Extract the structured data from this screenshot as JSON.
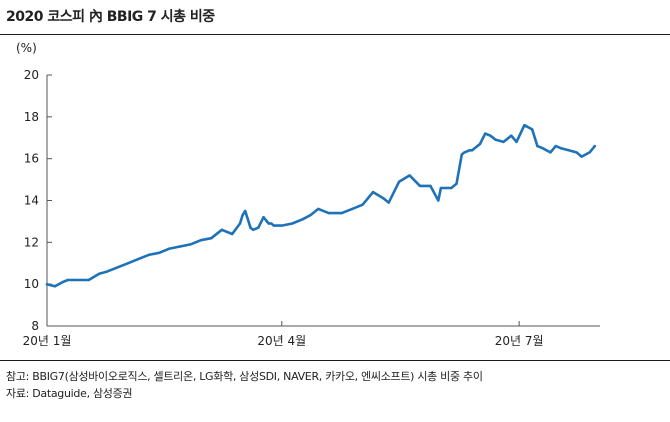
{
  "header": {
    "title": "2020 코스피 內 BBIG 7 시총 비중"
  },
  "footnotes": {
    "note": "참고: BBIG7(삼성바이오로직스, 셀트리온, LG화학, 삼성SDI, NAVER, 카카오, 엔씨소프트) 시총 비중 추이",
    "source": "자료: Dataguide, 삼성증권"
  },
  "chart_data": {
    "type": "line",
    "title": "2020 코스피 內 BBIG 7 시총 비중",
    "ylabel": "(%)",
    "xlabel": "",
    "ylim": [
      8,
      20
    ],
    "yticks": [
      "8",
      "10",
      "12",
      "14",
      "16",
      "18",
      "20"
    ],
    "xticks": [
      {
        "label": "20년 1월",
        "x": "2020-01-02"
      },
      {
        "label": "20년 4월",
        "x": "2020-04-01"
      },
      {
        "label": "20년 7월",
        "x": "2020-07-01"
      }
    ],
    "grid": false,
    "legend": "none",
    "color": "#1f72b8",
    "series": [
      {
        "x": [
          "2020-01-02",
          "2020-01-05",
          "2020-01-08",
          "2020-01-10",
          "2020-01-12",
          "2020-01-15",
          "2020-01-18",
          "2020-01-22",
          "2020-01-25",
          "2020-01-29",
          "2020-02-02",
          "2020-02-06",
          "2020-02-10",
          "2020-02-14",
          "2020-02-18",
          "2020-02-22",
          "2020-02-26",
          "2020-03-01",
          "2020-03-05",
          "2020-03-09",
          "2020-03-13",
          "2020-03-16",
          "2020-03-17",
          "2020-03-18",
          "2020-03-20",
          "2020-03-21",
          "2020-03-23",
          "2020-03-25",
          "2020-03-27",
          "2020-03-28",
          "2020-03-29",
          "2020-04-01",
          "2020-04-05",
          "2020-04-09",
          "2020-04-12",
          "2020-04-15",
          "2020-04-19",
          "2020-04-24",
          "2020-04-28",
          "2020-05-02",
          "2020-05-06",
          "2020-05-10",
          "2020-05-12",
          "2020-05-16",
          "2020-05-20",
          "2020-05-24",
          "2020-05-28",
          "2020-05-31",
          "2020-06-01",
          "2020-06-03",
          "2020-06-05",
          "2020-06-07",
          "2020-06-09",
          "2020-06-10",
          "2020-06-12",
          "2020-06-13",
          "2020-06-16",
          "2020-06-18",
          "2020-06-20",
          "2020-06-22",
          "2020-06-25",
          "2020-06-28",
          "2020-06-30",
          "2020-07-03",
          "2020-07-06",
          "2020-07-08",
          "2020-07-10",
          "2020-07-13",
          "2020-07-15",
          "2020-07-17",
          "2020-07-20",
          "2020-07-23",
          "2020-07-25",
          "2020-07-28",
          "2020-07-30"
        ],
        "y": [
          10.0,
          9.9,
          10.1,
          10.2,
          10.2,
          10.2,
          10.2,
          10.5,
          10.6,
          10.8,
          11.0,
          11.2,
          11.4,
          11.5,
          11.7,
          11.8,
          11.9,
          12.1,
          12.2,
          12.6,
          12.4,
          12.9,
          13.3,
          13.5,
          12.7,
          12.6,
          12.7,
          13.2,
          12.9,
          12.9,
          12.8,
          12.8,
          12.9,
          13.1,
          13.3,
          13.6,
          13.4,
          13.4,
          13.6,
          13.8,
          14.4,
          14.1,
          13.9,
          14.9,
          15.2,
          14.7,
          14.7,
          14.0,
          14.6,
          14.6,
          14.6,
          14.8,
          16.2,
          16.3,
          16.4,
          16.4,
          16.7,
          17.2,
          17.1,
          16.9,
          16.8,
          17.1,
          16.8,
          17.6,
          17.4,
          16.6,
          16.5,
          16.3,
          16.6,
          16.5,
          16.4,
          16.3,
          16.1,
          16.3,
          16.6
        ]
      }
    ]
  }
}
